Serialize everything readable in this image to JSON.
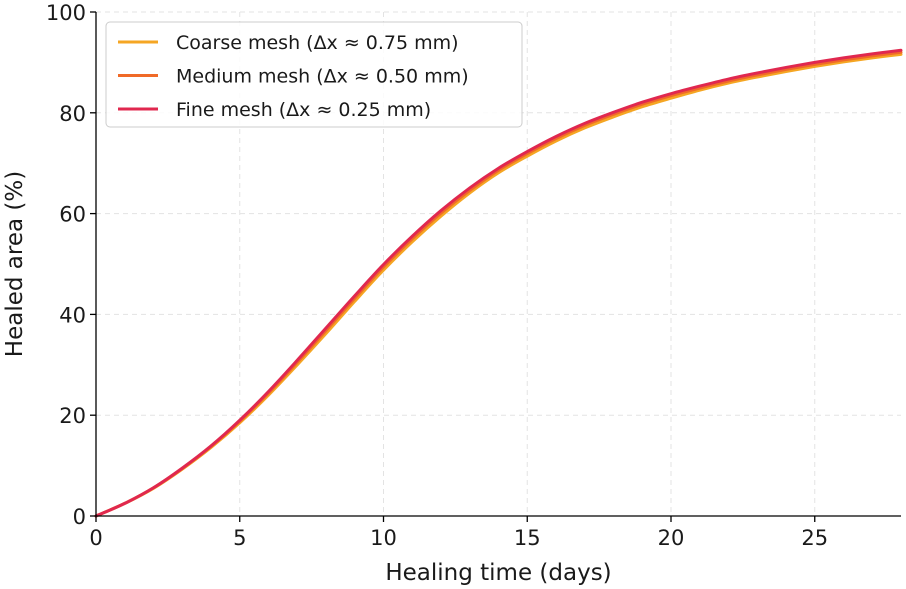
{
  "chart_data": {
    "type": "line",
    "title": "",
    "xlabel": "Healing time (days)",
    "ylabel": "Healed area (%)",
    "xlim": [
      0,
      28
    ],
    "ylim": [
      0,
      100
    ],
    "xticks": [
      0,
      5,
      10,
      15,
      20,
      25
    ],
    "yticks": [
      0,
      20,
      40,
      60,
      80,
      100
    ],
    "grid": true,
    "legend_position": "top-left",
    "series": [
      {
        "name": "Coarse mesh (Δx ≈ 0.75 mm)",
        "color": "#f5a623",
        "x": [
          0,
          1,
          2,
          3,
          4,
          5,
          6,
          7,
          8,
          9,
          10,
          11,
          12,
          13,
          14,
          15,
          16,
          17,
          18,
          19,
          20,
          21,
          22,
          23,
          24,
          25,
          26,
          27,
          28
        ],
        "y": [
          0,
          2.5,
          5.5,
          9.3,
          13.6,
          18.5,
          24,
          30,
          36.2,
          42.6,
          48.8,
          54.4,
          59.5,
          64.1,
          68.1,
          71.4,
          74.4,
          77,
          79.2,
          81.2,
          82.9,
          84.5,
          85.9,
          87.1,
          88.2,
          89.2,
          90.1,
          90.9,
          91.6
        ]
      },
      {
        "name": "Medium mesh (Δx ≈ 0.50 mm)",
        "color": "#f06a28",
        "x": [
          0,
          1,
          2,
          3,
          4,
          5,
          6,
          7,
          8,
          9,
          10,
          11,
          12,
          13,
          14,
          15,
          16,
          17,
          18,
          19,
          20,
          21,
          22,
          23,
          24,
          25,
          26,
          27,
          28
        ],
        "y": [
          0,
          2.5,
          5.6,
          9.4,
          13.8,
          18.8,
          24.4,
          30.5,
          36.8,
          43.2,
          49.4,
          55,
          60.1,
          64.6,
          68.6,
          71.9,
          74.9,
          77.5,
          79.7,
          81.7,
          83.4,
          84.9,
          86.3,
          87.5,
          88.6,
          89.6,
          90.5,
          91.3,
          92
        ]
      },
      {
        "name": "Fine mesh (Δx ≈ 0.25 mm)",
        "color": "#e0284f",
        "x": [
          0,
          1,
          2,
          3,
          4,
          5,
          6,
          7,
          8,
          9,
          10,
          11,
          12,
          13,
          14,
          15,
          16,
          17,
          18,
          19,
          20,
          21,
          22,
          23,
          24,
          25,
          26,
          27,
          28
        ],
        "y": [
          0,
          2.5,
          5.6,
          9.5,
          13.9,
          19,
          24.7,
          30.9,
          37.3,
          43.7,
          49.9,
          55.5,
          60.6,
          65.1,
          69,
          72.3,
          75.3,
          77.9,
          80.1,
          82.1,
          83.8,
          85.3,
          86.7,
          87.9,
          89,
          90,
          90.9,
          91.7,
          92.4
        ]
      }
    ]
  }
}
